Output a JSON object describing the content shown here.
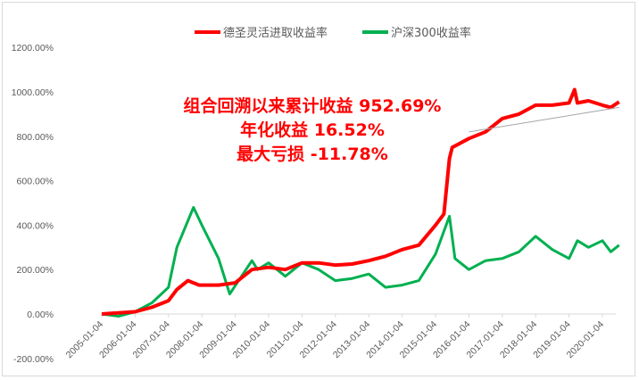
{
  "chart_data": {
    "type": "line",
    "title": "",
    "xlabel": "",
    "ylabel": "",
    "ylim": [
      -200,
      1200
    ],
    "yticks": [
      "-200.00%",
      "0.00%",
      "200.00%",
      "400.00%",
      "600.00%",
      "800.00%",
      "1000.00%",
      "1200.00%"
    ],
    "xticks": [
      "2005-01-04",
      "2006-01-04",
      "2007-01-04",
      "2008-01-04",
      "2009-01-04",
      "2010-01-04",
      "2011-01-04",
      "2012-01-04",
      "2013-01-04",
      "2014-01-04",
      "2015-01-04",
      "2016-01-04",
      "2017-01-04",
      "2018-01-04",
      "2019-01-04",
      "2020-01-04"
    ],
    "xlim": [
      "2005-01",
      "2020-07"
    ],
    "grid": "horizontal",
    "legend_position": "top",
    "series": [
      {
        "name": "德圣灵活进取收益率",
        "color": "#ff0000",
        "x": [
          "2005-01",
          "2006-01",
          "2006-07",
          "2007-01",
          "2007-04",
          "2007-08",
          "2007-12",
          "2008-07",
          "2009-01",
          "2009-07",
          "2010-01",
          "2010-07",
          "2011-01",
          "2011-07",
          "2012-01",
          "2012-07",
          "2013-01",
          "2013-07",
          "2014-01",
          "2014-07",
          "2015-01",
          "2015-04",
          "2015-06",
          "2015-07",
          "2016-01",
          "2016-07",
          "2017-01",
          "2017-07",
          "2018-01",
          "2018-07",
          "2019-01",
          "2019-03",
          "2019-04",
          "2019-08",
          "2020-01",
          "2020-04",
          "2020-07"
        ],
        "y": [
          0,
          10,
          30,
          60,
          110,
          150,
          130,
          130,
          140,
          200,
          210,
          200,
          230,
          230,
          220,
          225,
          240,
          260,
          290,
          310,
          400,
          450,
          700,
          750,
          790,
          820,
          880,
          900,
          940,
          940,
          950,
          1010,
          950,
          960,
          940,
          930,
          955
        ]
      },
      {
        "name": "沪深300收益率",
        "color": "#00b050",
        "x": [
          "2005-01",
          "2005-07",
          "2006-01",
          "2006-07",
          "2007-01",
          "2007-04",
          "2007-10",
          "2008-01",
          "2008-07",
          "2008-11",
          "2009-07",
          "2009-09",
          "2010-01",
          "2010-07",
          "2011-01",
          "2011-07",
          "2012-01",
          "2012-07",
          "2013-01",
          "2013-07",
          "2014-01",
          "2014-07",
          "2015-01",
          "2015-06",
          "2015-08",
          "2016-01",
          "2016-07",
          "2017-01",
          "2017-07",
          "2018-01",
          "2018-07",
          "2019-01",
          "2019-04",
          "2019-08",
          "2020-01",
          "2020-04",
          "2020-07"
        ],
        "y": [
          0,
          -10,
          10,
          50,
          120,
          300,
          480,
          400,
          250,
          90,
          240,
          200,
          230,
          170,
          230,
          200,
          150,
          160,
          180,
          120,
          130,
          150,
          270,
          440,
          250,
          200,
          240,
          250,
          280,
          350,
          290,
          250,
          330,
          300,
          330,
          280,
          310
        ]
      }
    ],
    "trendline": {
      "color": "#a6a6a6",
      "x": [
        "2016-01",
        "2020-07"
      ],
      "y": [
        820,
        930
      ]
    },
    "annotations": [
      "组合回溯以来累计收益 952.69%",
      "年化收益 16.52%",
      "最大亏损 -11.78%"
    ]
  }
}
